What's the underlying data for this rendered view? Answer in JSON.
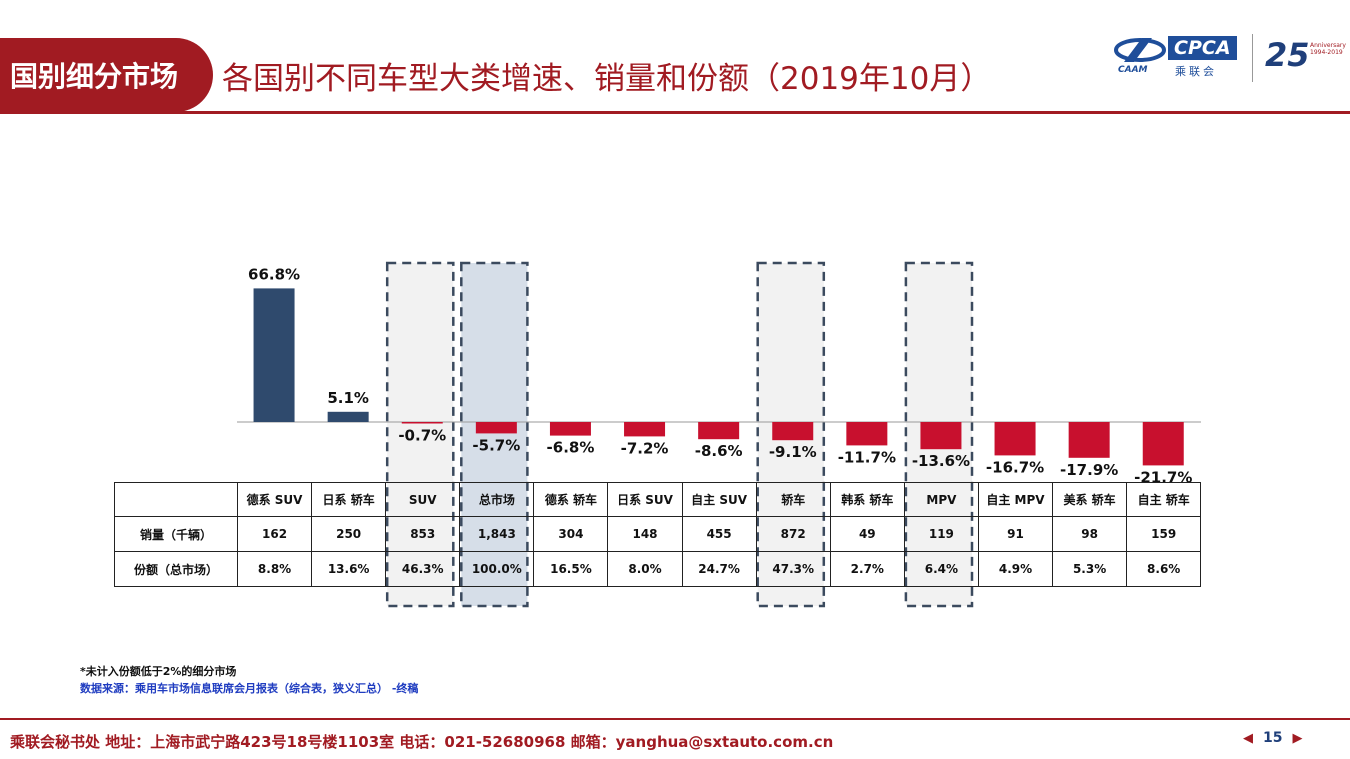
{
  "header": {
    "section_tag": "国别细分市场",
    "title": "各国别不同车型大类增速、销量和份额（2019年10月）",
    "logo_caam": "CAAM",
    "logo_cpca": "CPCA",
    "logo_cpca_sub": "乘联会",
    "logo_anniversary": "25",
    "logo_anniversary_sub": "Anniversary 1994-2019"
  },
  "colors": {
    "brand_red": "#A11B22",
    "positive_bar": "#2F4A6D",
    "negative_bar": "#C8102E",
    "highlight_fill": "#F2F2F2",
    "highlight_strong": "#D6DEE8",
    "highlight_border": "#3B4A5E"
  },
  "chart_data": {
    "type": "bar",
    "title": "",
    "xlabel": "",
    "ylabel": "",
    "categories": [
      "德系 SUV",
      "日系 轿车",
      "SUV",
      "总市场",
      "德系 轿车",
      "日系 SUV",
      "自主 SUV",
      "轿车",
      "韩系 轿车",
      "MPV",
      "自主 MPV",
      "美系 轿车",
      "自主 轿车"
    ],
    "values": [
      66.8,
      5.1,
      -0.7,
      -5.7,
      -6.8,
      -7.2,
      -8.6,
      -9.1,
      -11.7,
      -13.6,
      -16.7,
      -17.9,
      -21.7
    ],
    "value_labels": [
      "66.8%",
      "5.1%",
      "-0.7%",
      "-5.7%",
      "-6.8%",
      "-7.2%",
      "-8.6%",
      "-9.1%",
      "-11.7%",
      "-13.6%",
      "-16.7%",
      "-17.9%",
      "-21.7%"
    ],
    "highlighted": [
      "SUV",
      "总市场",
      "轿车",
      "MPV"
    ],
    "ylim": [
      -25,
      70
    ]
  },
  "table": {
    "rows": [
      {
        "label": "销量（千辆）",
        "cells": [
          "162",
          "250",
          "853",
          "1,843",
          "304",
          "148",
          "455",
          "872",
          "49",
          "119",
          "91",
          "98",
          "159"
        ]
      },
      {
        "label": "份额（总市场）",
        "cells": [
          "8.8%",
          "13.6%",
          "46.3%",
          "100.0%",
          "16.5%",
          "8.0%",
          "24.7%",
          "47.3%",
          "2.7%",
          "6.4%",
          "4.9%",
          "5.3%",
          "8.6%"
        ]
      }
    ]
  },
  "notes": {
    "line1": "*未计入份额低于2%的细分市场",
    "line2": "数据来源：乘用车市场信息联席会月报表（综合表，狭义汇总） -终稿"
  },
  "footer": {
    "text": "乘联会秘书处   地址：上海市武宁路423号18号楼1103室  电话：021-52680968   邮箱：yanghua@sxtauto.com.cn",
    "page": "15"
  }
}
